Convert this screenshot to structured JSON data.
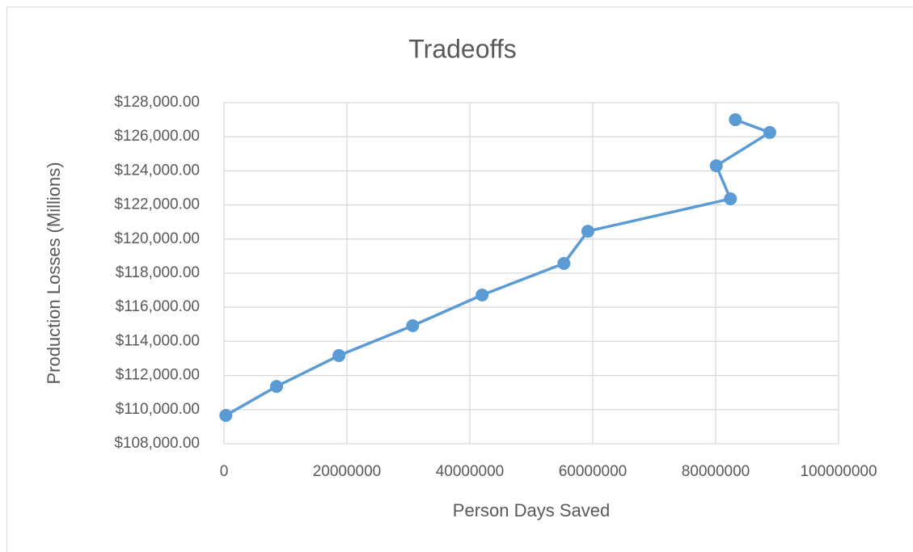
{
  "chart_data": {
    "type": "line",
    "title": "Tradeoffs",
    "x_label": "Person Days Saved",
    "y_label": "Production Losses (Millions)",
    "x": [
      300000,
      8550000,
      18700000,
      30700000,
      42000000,
      55300000,
      59200000,
      82400000,
      80100000,
      88800000,
      83200000
    ],
    "values": [
      109660,
      111360,
      113170,
      114920,
      116720,
      118570,
      120460,
      122360,
      124300,
      126250,
      127000
    ],
    "color": "#5b9bd5",
    "markers": true,
    "grid": true,
    "xlim": [
      0,
      100000000
    ],
    "xticks": [
      0,
      20000000,
      40000000,
      60000000,
      80000000,
      100000000
    ],
    "ylim": [
      108000,
      128000
    ],
    "yticks": [
      {
        "value": 108000,
        "label": "$108,000.00"
      },
      {
        "value": 110000,
        "label": "$110,000.00"
      },
      {
        "value": 112000,
        "label": "$112,000.00"
      },
      {
        "value": 114000,
        "label": "$114,000.00"
      },
      {
        "value": 116000,
        "label": "$116,000.00"
      },
      {
        "value": 118000,
        "label": "$118,000.00"
      },
      {
        "value": 120000,
        "label": "$120,000.00"
      },
      {
        "value": 122000,
        "label": "$122,000.00"
      },
      {
        "value": 124000,
        "label": "$124,000.00"
      },
      {
        "value": 126000,
        "label": "$126,000.00"
      },
      {
        "value": 128000,
        "label": "$128,000.00"
      }
    ]
  }
}
